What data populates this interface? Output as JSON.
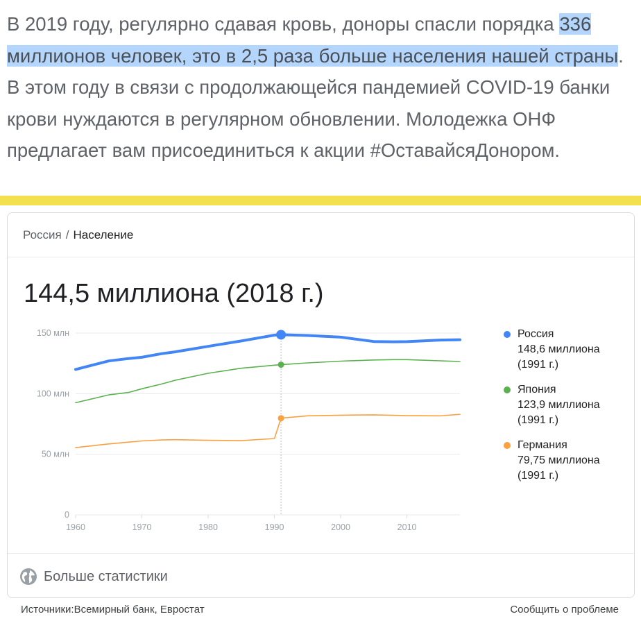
{
  "article": {
    "text_before": "В 2019 году, регулярно сдавая кровь, доноры спасли порядка ",
    "text_highlight": "336 миллионов человек, это в 2,5 раза больше населения нашей страны",
    "text_after": ". В этом году в связи с продолжающейся пандемией COVID-19 банки крови нуждаются в регулярном обновлении. Молодежка ОНФ предлагает вам присоединиться к акции #ОставайсяДонором."
  },
  "card": {
    "breadcrumb": {
      "parent": "Россия",
      "separator": "/",
      "current": "Население"
    },
    "big_value": "144,5 миллиона (2018 г.)",
    "more_stats_label": "Больше статистики",
    "more_stats_icon": "globe-icon"
  },
  "footer": {
    "sources": "Источники:Всемирный банк, Евростат",
    "report": "Сообщить о проблеме"
  },
  "colors": {
    "highlight": "#b5d6fc",
    "accent_bar": "#f3e04e"
  },
  "chart_data": {
    "type": "line",
    "x": [
      1960,
      1965,
      1968,
      1970,
      1973,
      1975,
      1980,
      1985,
      1990,
      1991,
      1995,
      2000,
      2005,
      2008,
      2010,
      2015,
      2018
    ],
    "xticks": [
      "1960",
      "1970",
      "1980",
      "1990",
      "2000",
      "2010"
    ],
    "xtick_values": [
      1960,
      1970,
      1980,
      1990,
      2000,
      2010
    ],
    "yticks": [
      "0",
      "50 млн",
      "100 млн",
      "150 млн"
    ],
    "ytick_values": [
      0,
      50,
      100,
      150
    ],
    "xlim": [
      1960,
      2018
    ],
    "ylim": [
      0,
      150
    ],
    "highlight_x": 1991,
    "grid": true,
    "legend_position": "right",
    "series": [
      {
        "name": "Россия",
        "legend_value": "148,6 миллиона",
        "legend_year": "(1991 г.)",
        "color": "#4285f4",
        "values": [
          120,
          127,
          129,
          130,
          133,
          134.5,
          139,
          143.5,
          148.3,
          148.6,
          148,
          146.6,
          143,
          142.8,
          142.9,
          144.2,
          144.5
        ]
      },
      {
        "name": "Япония",
        "legend_value": "123,9 миллиона",
        "legend_year": "(1991 г.)",
        "color": "#5bb04f",
        "values": [
          92.5,
          99,
          101,
          104,
          108,
          111,
          116.8,
          121,
          123.5,
          123.9,
          125.4,
          126.8,
          127.8,
          128.1,
          128.1,
          127.1,
          126.5
        ]
      },
      {
        "name": "Германия",
        "legend_value": "79,75 миллиона",
        "legend_year": "(1991 г.)",
        "color": "#f9a03f",
        "values": [
          55.5,
          58.5,
          60,
          61,
          61.8,
          62,
          61.5,
          61.2,
          63,
          79.75,
          81.7,
          82.2,
          82.5,
          82.1,
          81.8,
          81.7,
          82.9
        ]
      }
    ]
  }
}
